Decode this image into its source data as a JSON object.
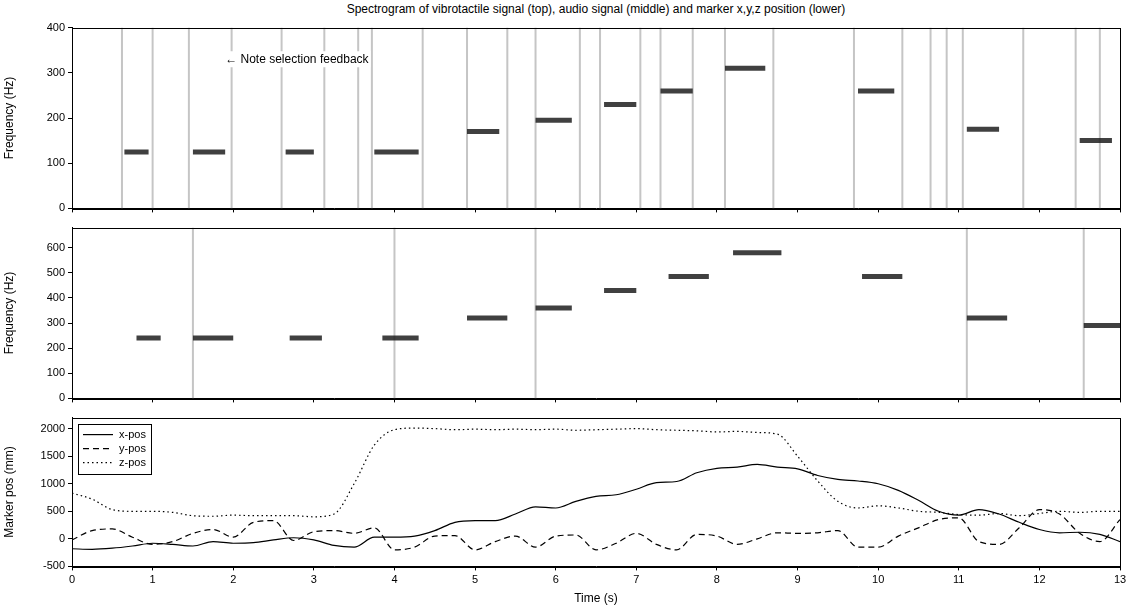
{
  "title": "Spectrogram of vibrotactile signal (top), audio signal (middle) and marker x,y,z position (lower)",
  "chart_data": [
    {
      "type": "spectrogram",
      "ylabel": "Frequency (Hz)",
      "xlim": [
        0,
        13
      ],
      "xticks": [
        0,
        1,
        2,
        3,
        4,
        5,
        6,
        7,
        8,
        9,
        10,
        11,
        12,
        13
      ],
      "ylim": [
        0,
        400
      ],
      "yticks": [
        0,
        100,
        200,
        300,
        400
      ],
      "tick_labels": "y",
      "annotations": [
        {
          "text": "← Note selection feedback",
          "x": 1.9,
          "y": 330
        }
      ],
      "tones": [
        {
          "start": 0.65,
          "end": 0.95,
          "frequency": 125
        },
        {
          "start": 1.5,
          "end": 1.9,
          "frequency": 125
        },
        {
          "start": 2.65,
          "end": 3.0,
          "frequency": 125
        },
        {
          "start": 3.75,
          "end": 4.3,
          "frequency": 125
        },
        {
          "start": 4.9,
          "end": 5.3,
          "frequency": 170
        },
        {
          "start": 5.75,
          "end": 6.2,
          "frequency": 195
        },
        {
          "start": 6.6,
          "end": 7.0,
          "frequency": 230
        },
        {
          "start": 7.3,
          "end": 7.7,
          "frequency": 260
        },
        {
          "start": 8.1,
          "end": 8.6,
          "frequency": 310
        },
        {
          "start": 9.75,
          "end": 10.2,
          "frequency": 260
        },
        {
          "start": 11.1,
          "end": 11.5,
          "frequency": 175
        },
        {
          "start": 12.5,
          "end": 12.9,
          "frequency": 150
        }
      ],
      "clicks": [
        0.62,
        1.0,
        1.45,
        1.98,
        2.6,
        3.13,
        3.55,
        3.72,
        4.35,
        4.9,
        5.4,
        5.75,
        6.3,
        6.55,
        7.05,
        7.3,
        7.7,
        8.1,
        8.7,
        9.7,
        10.3,
        10.65,
        10.85,
        11.05,
        11.8,
        12.45,
        12.75
      ]
    },
    {
      "type": "spectrogram",
      "ylabel": "Frequency (Hz)",
      "xlim": [
        0,
        13
      ],
      "xticks": [
        0,
        1,
        2,
        3,
        4,
        5,
        6,
        7,
        8,
        9,
        10,
        11,
        12,
        13
      ],
      "ylim": [
        0,
        680
      ],
      "yticks": [
        0,
        100,
        200,
        300,
        400,
        500,
        600
      ],
      "tick_labels": "y",
      "tones": [
        {
          "start": 0.8,
          "end": 1.1,
          "frequency": 240
        },
        {
          "start": 1.5,
          "end": 2.0,
          "frequency": 240
        },
        {
          "start": 2.7,
          "end": 3.1,
          "frequency": 240
        },
        {
          "start": 3.85,
          "end": 4.3,
          "frequency": 240
        },
        {
          "start": 4.9,
          "end": 5.4,
          "frequency": 320
        },
        {
          "start": 5.75,
          "end": 6.2,
          "frequency": 360
        },
        {
          "start": 6.6,
          "end": 7.0,
          "frequency": 430
        },
        {
          "start": 7.4,
          "end": 7.9,
          "frequency": 485
        },
        {
          "start": 8.2,
          "end": 8.8,
          "frequency": 580
        },
        {
          "start": 9.8,
          "end": 10.3,
          "frequency": 485
        },
        {
          "start": 11.1,
          "end": 11.6,
          "frequency": 320
        },
        {
          "start": 12.55,
          "end": 13.0,
          "frequency": 290
        }
      ],
      "clicks": [
        1.5,
        4.0,
        5.75,
        11.1,
        12.55
      ]
    },
    {
      "type": "line",
      "xlabel": "Time (s)",
      "ylabel": "Marker pos (mm)",
      "xlim": [
        0,
        13
      ],
      "xticks": [
        0,
        1,
        2,
        3,
        4,
        5,
        6,
        7,
        8,
        9,
        10,
        11,
        12,
        13
      ],
      "ylim": [
        -500,
        2200
      ],
      "yticks": [
        -500,
        0,
        500,
        1000,
        1500,
        2000
      ],
      "legend": "upper left",
      "x": [
        0,
        0.25,
        0.5,
        0.75,
        1,
        1.25,
        1.5,
        1.75,
        2,
        2.25,
        2.5,
        2.75,
        3,
        3.25,
        3.5,
        3.75,
        4,
        4.25,
        4.5,
        4.75,
        5,
        5.25,
        5.5,
        5.75,
        6,
        6.25,
        6.5,
        6.75,
        7,
        7.25,
        7.5,
        7.75,
        8,
        8.25,
        8.5,
        8.75,
        9,
        9.25,
        9.5,
        9.75,
        10,
        10.25,
        10.5,
        10.75,
        11,
        11.25,
        11.5,
        11.75,
        12,
        12.25,
        12.5,
        12.75,
        13
      ],
      "series": [
        {
          "name": "x-pos",
          "color": "#000000",
          "line_style": "solid",
          "values": [
            -180,
            -190,
            -170,
            -130,
            -80,
            -100,
            -130,
            -50,
            -80,
            -70,
            -20,
            20,
            -20,
            -120,
            -150,
            30,
            30,
            50,
            150,
            300,
            330,
            330,
            450,
            580,
            560,
            680,
            770,
            800,
            900,
            1020,
            1040,
            1200,
            1280,
            1300,
            1350,
            1300,
            1270,
            1150,
            1080,
            1050,
            1000,
            880,
            700,
            500,
            430,
            530,
            450,
            300,
            170,
            110,
            120,
            80,
            -50
          ]
        },
        {
          "name": "y-pos",
          "color": "#000000",
          "line_style": "dashed",
          "values": [
            -20,
            150,
            180,
            30,
            -100,
            -50,
            100,
            170,
            30,
            300,
            330,
            -30,
            130,
            150,
            100,
            200,
            -200,
            -150,
            50,
            60,
            -200,
            -50,
            50,
            -150,
            50,
            70,
            -200,
            -80,
            100,
            -100,
            -200,
            80,
            50,
            -100,
            0,
            110,
            100,
            110,
            150,
            -150,
            -150,
            50,
            200,
            350,
            380,
            -50,
            -100,
            200,
            530,
            450,
            100,
            -50,
            350
          ]
        },
        {
          "name": "z-pos",
          "color": "#000000",
          "line_style": "dotted",
          "values": [
            830,
            720,
            530,
            500,
            500,
            480,
            420,
            410,
            430,
            420,
            420,
            420,
            400,
            450,
            1000,
            1700,
            1980,
            2010,
            2000,
            1980,
            1990,
            1980,
            1990,
            1980,
            1990,
            1970,
            1980,
            1990,
            2000,
            1980,
            1970,
            1960,
            1940,
            1950,
            1930,
            1900,
            1500,
            1050,
            680,
            560,
            600,
            560,
            500,
            480,
            440,
            430,
            460,
            420,
            460,
            500,
            480,
            500,
            500
          ]
        }
      ]
    }
  ]
}
